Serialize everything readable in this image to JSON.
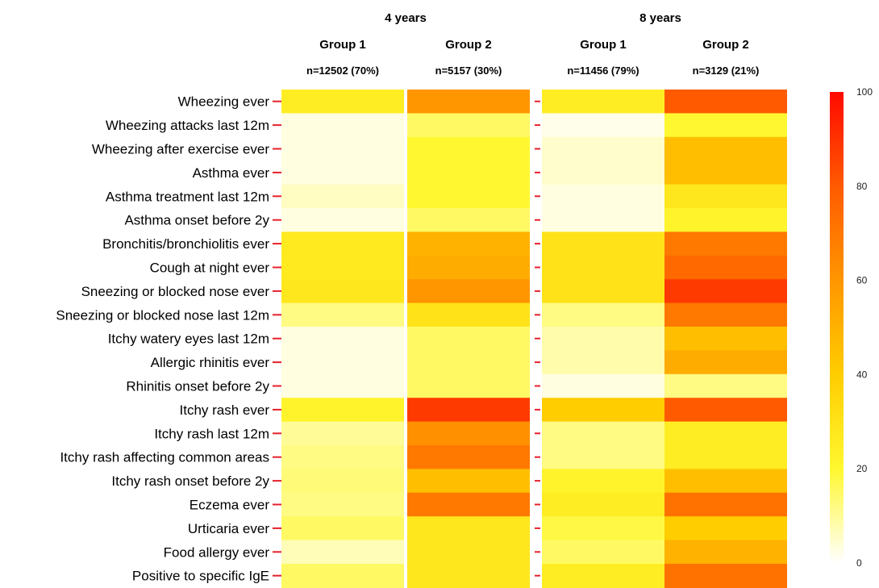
{
  "chart_data": {
    "type": "heatmap",
    "panels": [
      {
        "label": "4 years",
        "columns": [
          {
            "name": "Group 1",
            "n": "n=12502 (70%)"
          },
          {
            "name": "Group 2",
            "n": "n=5157 (30%)"
          }
        ]
      },
      {
        "label": "8 years",
        "columns": [
          {
            "name": "Group 1",
            "n": "n=11456 (79%)"
          },
          {
            "name": "Group 2",
            "n": "n=3129 (21%)"
          }
        ]
      }
    ],
    "rows": [
      "Wheezing ever",
      "Wheezing attacks last 12m",
      "Wheezing after exercise ever",
      "Asthma ever",
      "Asthma treatment last 12m",
      "Asthma onset before 2y",
      "Bronchitis/bronchiolitis ever",
      "Cough at night ever",
      "Sneezing or blocked nose ever",
      "Sneezing or blocked nose last 12m",
      "Itchy watery eyes last 12m",
      "Allergic rhinitis ever",
      "Rhinitis onset before 2y",
      "Itchy rash ever",
      "Itchy rash last 12m",
      "Itchy rash affecting common areas",
      "Itchy rash onset before 2y",
      "Eczema ever",
      "Urticaria ever",
      "Food allergy ever",
      "Positive to specific IgE"
    ],
    "values": [
      [
        25,
        60,
        25,
        80
      ],
      [
        3,
        15,
        2,
        20
      ],
      [
        3,
        20,
        5,
        45
      ],
      [
        3,
        20,
        5,
        45
      ],
      [
        6,
        20,
        3,
        28
      ],
      [
        3,
        15,
        3,
        22
      ],
      [
        27,
        50,
        30,
        70
      ],
      [
        27,
        52,
        30,
        75
      ],
      [
        28,
        60,
        30,
        88
      ],
      [
        12,
        30,
        12,
        70
      ],
      [
        3,
        15,
        8,
        45
      ],
      [
        3,
        15,
        8,
        52
      ],
      [
        3,
        15,
        3,
        12
      ],
      [
        22,
        88,
        40,
        80
      ],
      [
        10,
        62,
        12,
        25
      ],
      [
        12,
        70,
        12,
        25
      ],
      [
        13,
        45,
        22,
        45
      ],
      [
        12,
        70,
        25,
        72
      ],
      [
        15,
        28,
        18,
        40
      ],
      [
        7,
        28,
        15,
        50
      ],
      [
        15,
        28,
        25,
        72
      ]
    ],
    "colorbar": {
      "min": 0,
      "max": 100,
      "ticks": [
        0,
        20,
        40,
        60,
        80,
        100
      ]
    }
  }
}
